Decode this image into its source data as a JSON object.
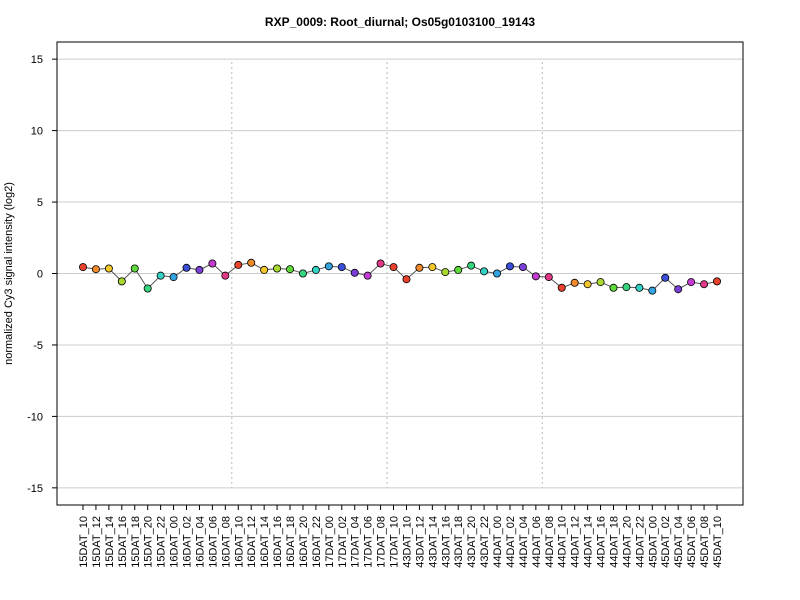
{
  "chart_data": {
    "type": "line",
    "title": "RXP_0009: Root_diurnal; Os05g0103100_19143",
    "ylabel": "normalized Cy3 signal intensity (log2)",
    "xlabel": "",
    "ylim": [
      -16.2,
      16.2
    ],
    "yticks": [
      -15,
      -10,
      -5,
      0,
      5,
      10,
      15
    ],
    "grid": true,
    "day_separators_after_index": [
      11,
      23,
      35
    ],
    "categories": [
      "15DAT_10",
      "15DAT_12",
      "15DAT_14",
      "15DAT_16",
      "15DAT_18",
      "15DAT_20",
      "15DAT_22",
      "16DAT_00",
      "16DAT_02",
      "16DAT_04",
      "16DAT_06",
      "16DAT_08",
      "16DAT_10",
      "16DAT_12",
      "16DAT_14",
      "16DAT_16",
      "16DAT_18",
      "16DAT_20",
      "16DAT_22",
      "17DAT_00",
      "17DAT_02",
      "17DAT_04",
      "17DAT_06",
      "17DAT_08",
      "17DAT_10",
      "43DAT_10",
      "43DAT_12",
      "43DAT_14",
      "43DAT_16",
      "43DAT_18",
      "43DAT_20",
      "43DAT_22",
      "44DAT_00",
      "44DAT_02",
      "44DAT_04",
      "44DAT_06",
      "44DAT_08",
      "44DAT_10",
      "44DAT_12",
      "44DAT_14",
      "44DAT_16",
      "44DAT_18",
      "44DAT_20",
      "44DAT_22",
      "45DAT_00",
      "45DAT_02",
      "45DAT_04",
      "45DAT_06",
      "45DAT_08",
      "45DAT_10"
    ],
    "values": [
      0.45,
      0.3,
      0.35,
      -0.55,
      0.35,
      -1.05,
      -0.15,
      -0.25,
      0.4,
      0.25,
      0.7,
      -0.15,
      0.6,
      0.75,
      0.25,
      0.35,
      0.3,
      0.0,
      0.25,
      0.5,
      0.45,
      0.05,
      -0.15,
      0.7,
      0.45,
      -0.4,
      0.4,
      0.45,
      0.1,
      0.25,
      0.55,
      0.15,
      0.0,
      0.5,
      0.45,
      -0.2,
      -0.25,
      -1.0,
      -0.65,
      -0.75,
      -0.6,
      -1.0,
      -0.95,
      -1.0,
      -1.2,
      -0.3,
      -1.1,
      -0.6,
      -0.75,
      -0.55
    ],
    "point_colors": [
      "#E8412C",
      "#F08A2A",
      "#F2C72C",
      "#A8D82F",
      "#5FD93A",
      "#35D47D",
      "#33D2C4",
      "#35A3E0",
      "#3A4FD8",
      "#7A3FD6",
      "#C23CD2",
      "#E03A86",
      "#E8412C",
      "#F08A2A",
      "#F2C72C",
      "#A8D82F",
      "#5FD93A",
      "#35D47D",
      "#33D2C4",
      "#35A3E0",
      "#3A4FD8",
      "#7A3FD6",
      "#C23CD2",
      "#E03A86",
      "#E8412C",
      "#E8412C",
      "#F08A2A",
      "#F2C72C",
      "#A8D82F",
      "#5FD93A",
      "#35D47D",
      "#33D2C4",
      "#35A3E0",
      "#3A4FD8",
      "#7A3FD6",
      "#C23CD2",
      "#E03A86",
      "#E8412C",
      "#F08A2A",
      "#F2C72C",
      "#A8D82F",
      "#5FD93A",
      "#35D47D",
      "#33D2C4",
      "#35A3E0",
      "#3A4FD8",
      "#7A3FD6",
      "#C23CD2",
      "#E03A86",
      "#E8412C"
    ],
    "line_color": "#555555",
    "grid_color": "#cccccc",
    "separator_color": "#bbbbbb"
  }
}
